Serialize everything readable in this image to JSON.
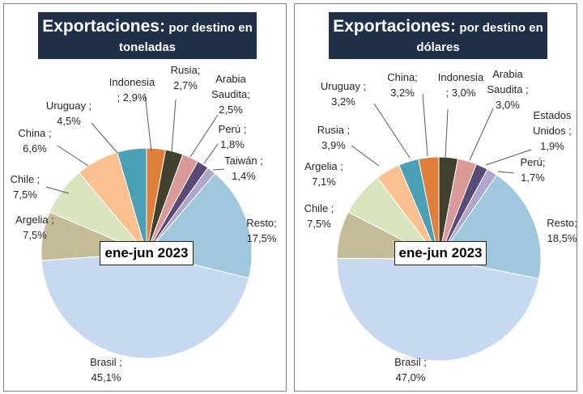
{
  "chart_data": [
    {
      "type": "pie",
      "title": "Exportaciones:",
      "subtitle": "por destino en toneladas",
      "period": "ene-jun 2023",
      "slices": [
        {
          "name": "Indonesia",
          "label": "Indonesia ; 2,9%",
          "value": 2.9,
          "color": "#e07f3b"
        },
        {
          "name": "Rusia",
          "label": "Rusia; 2,7%",
          "value": 2.7,
          "color": "#413f2d"
        },
        {
          "name": "Arabia Saudita",
          "label": "Arabia Saudita; 2,5%",
          "value": 2.5,
          "color": "#d99a97"
        },
        {
          "name": "Perú",
          "label": "Perú ; 1,8%",
          "value": 1.8,
          "color": "#5a4a78"
        },
        {
          "name": "Taiwán",
          "label": "Taiwán ; 1,4%",
          "value": 1.4,
          "color": "#aea6cc"
        },
        {
          "name": "Resto",
          "label": "Resto; 17,5%",
          "value": 17.5,
          "color": "#9fc8dc"
        },
        {
          "name": "Brasil",
          "label": "Brasil ; 45,1%",
          "value": 45.1,
          "color": "#c6d9f0"
        },
        {
          "name": "Argelia",
          "label": "Argelia ; 7,5%",
          "value": 7.5,
          "color": "#c4bc97"
        },
        {
          "name": "Chile",
          "label": "Chile ; 7,5%",
          "value": 7.5,
          "color": "#d7e4bd"
        },
        {
          "name": "China",
          "label": "China ; 6,6%",
          "value": 6.6,
          "color": "#fac090"
        },
        {
          "name": "Uruguay",
          "label": "Uruguay ; 4,5%",
          "value": 4.5,
          "color": "#4aa0b5"
        }
      ]
    },
    {
      "type": "pie",
      "title": "Exportaciones:",
      "subtitle": "por destino en dólares",
      "period": "ene-jun 2023",
      "slices": [
        {
          "name": "Indonesia",
          "label": "Indonesia ; 3,0%",
          "value": 3.0,
          "color": "#413f2d"
        },
        {
          "name": "Arabia Saudita",
          "label": "Arabia Saudita ; 3,0%",
          "value": 3.0,
          "color": "#d99a97"
        },
        {
          "name": "Estados Unidos",
          "label": "Estados Unidos ; 1,9%",
          "value": 1.9,
          "color": "#5a4a78"
        },
        {
          "name": "Perú",
          "label": "Perú; 1,7%",
          "value": 1.7,
          "color": "#aea6cc"
        },
        {
          "name": "Resto",
          "label": "Resto; 18,5%",
          "value": 18.5,
          "color": "#9fc8dc"
        },
        {
          "name": "Brasil",
          "label": "Brasil ; 47,0%",
          "value": 47.0,
          "color": "#c6d9f0"
        },
        {
          "name": "Chile",
          "label": "Chile ; 7,5%",
          "value": 7.5,
          "color": "#c4bc97"
        },
        {
          "name": "Argelia",
          "label": "Argelia ; 7,1%",
          "value": 7.1,
          "color": "#d7e4bd"
        },
        {
          "name": "Rusia",
          "label": "Rusia ; 3,9%",
          "value": 3.9,
          "color": "#fac090"
        },
        {
          "name": "Uruguay",
          "label": "Uruguay ; 3,2%",
          "value": 3.2,
          "color": "#4aa0b5"
        },
        {
          "name": "China",
          "label": "China; 3,2%",
          "value": 3.2,
          "color": "#e07f3b"
        }
      ]
    }
  ]
}
